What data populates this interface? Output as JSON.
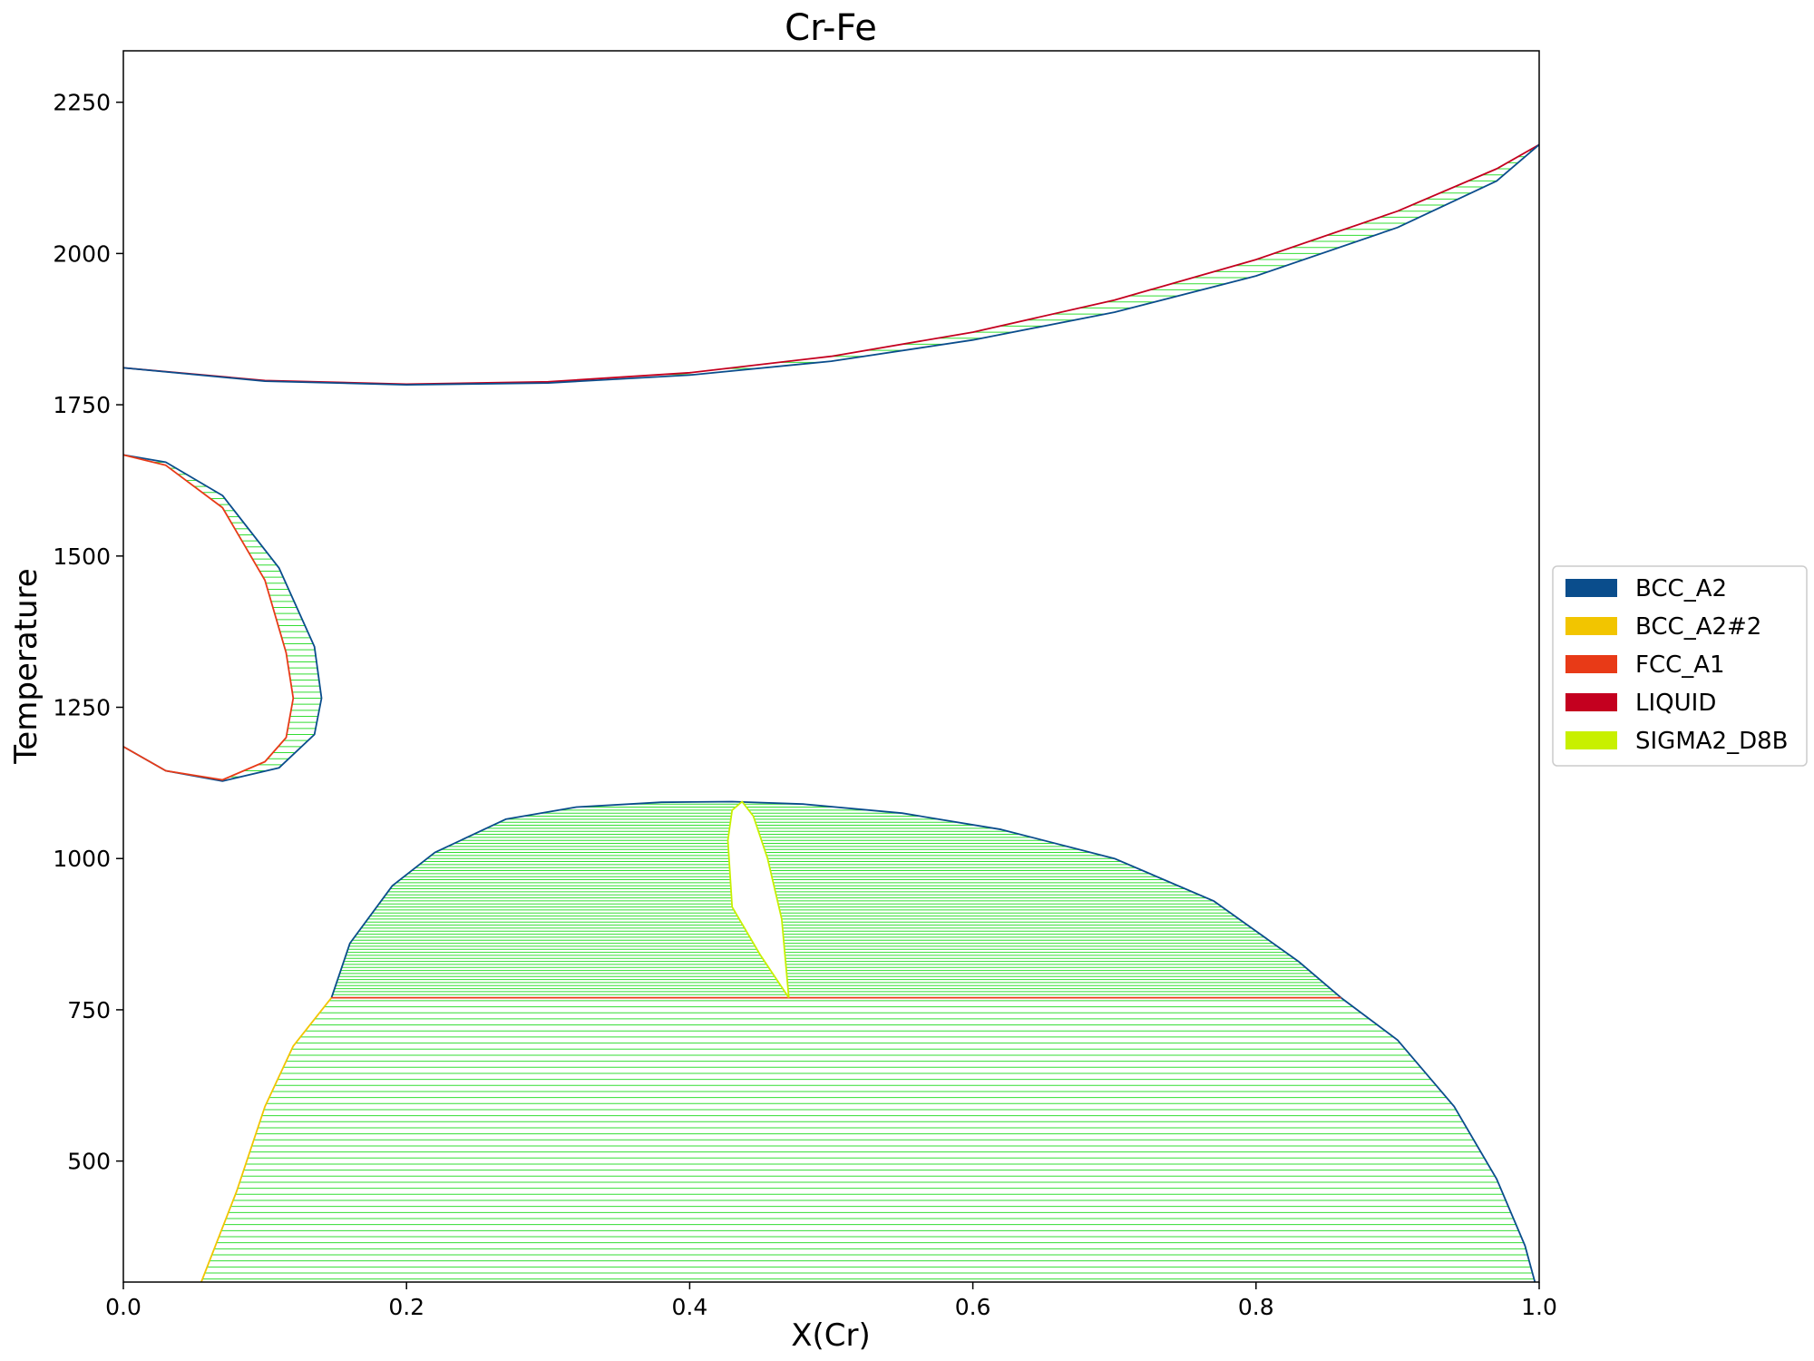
{
  "chart_data": {
    "type": "line",
    "title": "Cr-Fe",
    "xlabel": "X(Cr)",
    "ylabel": "Temperature",
    "xlim": [
      0.0,
      1.0
    ],
    "ylim": [
      300,
      2335
    ],
    "xticks": [
      0.0,
      0.2,
      0.4,
      0.6,
      0.8,
      1.0
    ],
    "xtick_labels": [
      "0.0",
      "0.2",
      "0.4",
      "0.6",
      "0.8",
      "1.0"
    ],
    "yticks": [
      500,
      750,
      1000,
      1250,
      1500,
      1750,
      2000,
      2250
    ],
    "ytick_labels": [
      "500",
      "750",
      "1000",
      "1250",
      "1500",
      "1750",
      "2000",
      "2250"
    ],
    "grid": false,
    "legend_position": "right",
    "legend": [
      {
        "name": "BCC_A2",
        "color": "#0a4d8c"
      },
      {
        "name": "BCC_A2#2",
        "color": "#f2c500"
      },
      {
        "name": "FCC_A1",
        "color": "#e83a17"
      },
      {
        "name": "LIQUID",
        "color": "#c4001f"
      },
      {
        "name": "SIGMA2_D8B",
        "color": "#c8f000"
      }
    ],
    "tieline_color": "#33dd33",
    "series": [
      {
        "phase": "LIQUID",
        "color": "#c4001f",
        "x": [
          0.0,
          0.1,
          0.2,
          0.3,
          0.4,
          0.5,
          0.6,
          0.7,
          0.8,
          0.9,
          0.97,
          1.0
        ],
        "y": [
          1811,
          1790,
          1784,
          1788,
          1803,
          1830,
          1870,
          1923,
          1990,
          2070,
          2140,
          2180
        ]
      },
      {
        "phase": "BCC_A2",
        "color": "#0a4d8c",
        "x": [
          0.0,
          0.1,
          0.2,
          0.3,
          0.4,
          0.5,
          0.6,
          0.7,
          0.8,
          0.9,
          0.97,
          1.0
        ],
        "y": [
          1811,
          1789,
          1783,
          1786,
          1799,
          1822,
          1857,
          1903,
          1963,
          2043,
          2120,
          2180
        ]
      },
      {
        "phase": "BCC_A2",
        "color": "#0a4d8c",
        "x": [
          0.0,
          0.03,
          0.07,
          0.11,
          0.135,
          0.14,
          0.135,
          0.11,
          0.07,
          0.03,
          0.0
        ],
        "y": [
          1667,
          1655,
          1600,
          1480,
          1350,
          1265,
          1205,
          1150,
          1128,
          1145,
          1185
        ]
      },
      {
        "phase": "FCC_A1",
        "color": "#e83a17",
        "x": [
          0.0,
          0.03,
          0.07,
          0.1,
          0.115,
          0.12,
          0.115,
          0.1,
          0.07,
          0.03,
          0.0
        ],
        "y": [
          1667,
          1650,
          1580,
          1460,
          1340,
          1265,
          1200,
          1160,
          1130,
          1145,
          1185
        ]
      },
      {
        "phase": "BCC_A2",
        "color": "#0a4d8c",
        "x": [
          0.147,
          0.16,
          0.19,
          0.22,
          0.27,
          0.32,
          0.38,
          0.43,
          0.48,
          0.55,
          0.62,
          0.7,
          0.77,
          0.83,
          0.86
        ],
        "y": [
          770,
          860,
          955,
          1010,
          1065,
          1085,
          1093,
          1094,
          1090,
          1075,
          1048,
          1000,
          930,
          830,
          770
        ]
      },
      {
        "phase": "BCC_A2",
        "color": "#0a4d8c",
        "x": [
          0.86,
          0.9,
          0.94,
          0.97,
          0.99,
          0.997
        ],
        "y": [
          770,
          700,
          590,
          470,
          360,
          300
        ]
      },
      {
        "phase": "BCC_A2#2",
        "color": "#f2c500",
        "x": [
          0.055,
          0.08,
          0.1,
          0.12,
          0.147
        ],
        "y": [
          300,
          450,
          590,
          690,
          770
        ]
      },
      {
        "phase": "FCC_A1",
        "color": "#e83a17",
        "x": [
          0.147,
          0.86
        ],
        "y": [
          770,
          770
        ]
      },
      {
        "phase": "SIGMA2_D8B",
        "color": "#c8f000",
        "x": [
          0.47,
          0.45,
          0.43,
          0.427,
          0.43,
          0.437,
          0.445,
          0.455,
          0.465,
          0.47
        ],
        "y": [
          770,
          840,
          920,
          1030,
          1080,
          1094,
          1070,
          1000,
          900,
          770
        ]
      }
    ]
  }
}
